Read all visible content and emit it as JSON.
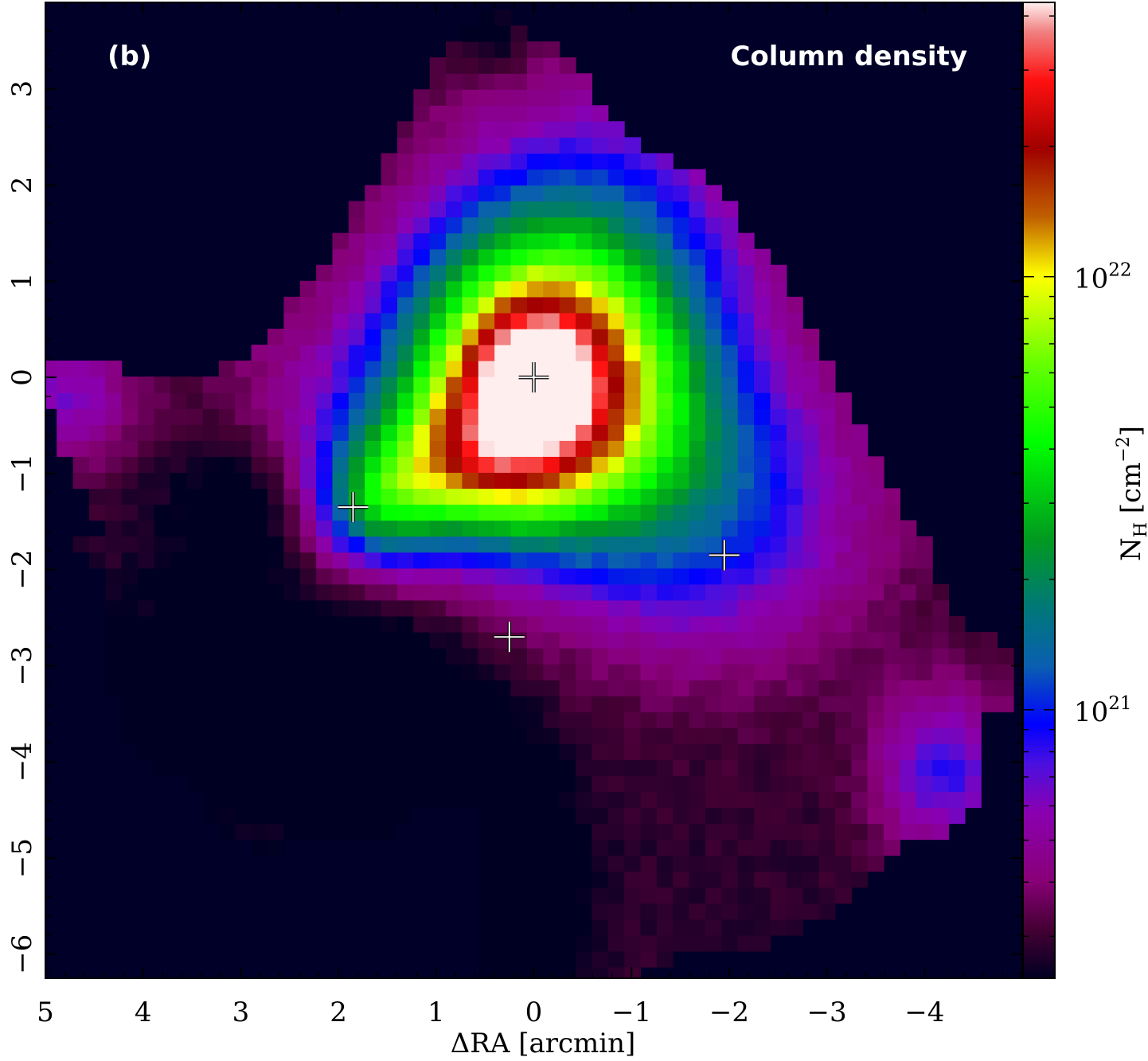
{
  "chart_data": {
    "type": "heatmap",
    "panel_label": "(b)",
    "title": "Column density",
    "xlabel": "ΔRA [arcmin]",
    "ylabel": "",
    "colorbar_label": {
      "main": "N",
      "sub": "H",
      "rest": " [cm",
      "sup": "−2",
      "close": "]"
    },
    "xlim": [
      5.0,
      -5.0
    ],
    "ylim": [
      -6.25,
      3.9
    ],
    "x_ticks": [
      {
        "value": 5,
        "label": "5"
      },
      {
        "value": 4,
        "label": "4"
      },
      {
        "value": 3,
        "label": "3"
      },
      {
        "value": 2,
        "label": "2"
      },
      {
        "value": 1,
        "label": "1"
      },
      {
        "value": 0,
        "label": "0"
      },
      {
        "value": -1,
        "label": "−1"
      },
      {
        "value": -2,
        "label": "−2"
      },
      {
        "value": -3,
        "label": "−3"
      },
      {
        "value": -4,
        "label": "−4"
      }
    ],
    "y_ticks": [
      {
        "value": 3,
        "label": "3"
      },
      {
        "value": 2,
        "label": "2"
      },
      {
        "value": 1,
        "label": "1"
      },
      {
        "value": 0,
        "label": "0"
      },
      {
        "value": -1,
        "label": "−1"
      },
      {
        "value": -2,
        "label": "−2"
      },
      {
        "value": -3,
        "label": "−3"
      },
      {
        "value": -4,
        "label": "−4"
      },
      {
        "value": -5,
        "label": "−5"
      },
      {
        "value": -6,
        "label": "−6"
      }
    ],
    "colorbar_scale": "log",
    "colorbar_range": [
      2.4e+20,
      4.3e+22
    ],
    "colorbar_ticks": [
      {
        "value": 1e+21,
        "base": "10",
        "exp": "21"
      },
      {
        "value": 1e+22,
        "base": "10",
        "exp": "22"
      }
    ],
    "peak_density": 4e+22,
    "background_color": "#000028",
    "markers": [
      {
        "x": 0.0,
        "y": 0.0
      },
      {
        "x": 1.85,
        "y": -1.35
      },
      {
        "x": -1.95,
        "y": -1.85
      },
      {
        "x": 0.25,
        "y": -2.7
      }
    ],
    "grid": false
  }
}
